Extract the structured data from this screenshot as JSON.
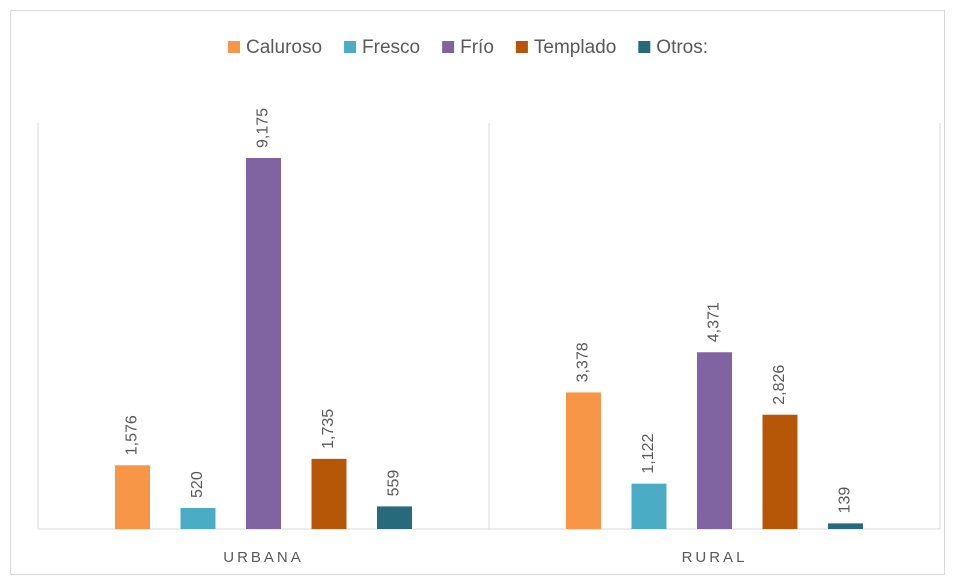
{
  "chart_data": {
    "type": "bar",
    "categories": [
      "URBANA",
      "RURAL"
    ],
    "series": [
      {
        "name": "Caluroso",
        "color": "#f79646",
        "values": [
          1576,
          3378
        ],
        "value_labels": [
          "1,576",
          "3,378"
        ]
      },
      {
        "name": "Fresco",
        "color": "#4bacc6",
        "values": [
          520,
          1122
        ],
        "value_labels": [
          "520",
          "1,122"
        ]
      },
      {
        "name": "Frío",
        "color": "#8064a2",
        "values": [
          9175,
          4371
        ],
        "value_labels": [
          "9,175",
          "4,371"
        ]
      },
      {
        "name": "Templado",
        "color": "#b65708",
        "values": [
          1735,
          2826
        ],
        "value_labels": [
          "1,735",
          "2,826"
        ]
      },
      {
        "name": "Otros:",
        "color": "#276a7c",
        "values": [
          559,
          139
        ],
        "value_labels": [
          "559",
          "139"
        ]
      }
    ],
    "legend": "top"
  }
}
